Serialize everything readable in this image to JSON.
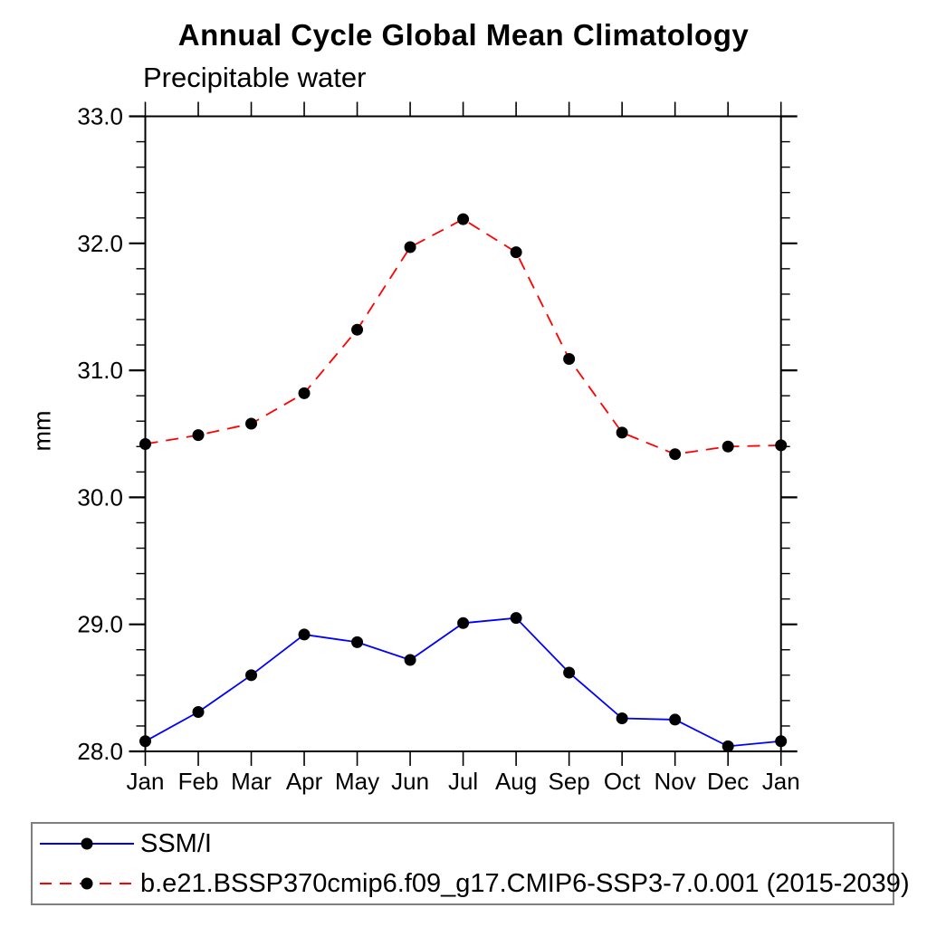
{
  "page": {
    "title": "Annual Cycle Global Mean Climatology",
    "subtitle": "Precipitable water",
    "y_axis_label": "mm"
  },
  "chart_data": {
    "type": "line",
    "title": "Annual Cycle Global Mean Climatology",
    "subtitle": "Precipitable water",
    "xlabel": "",
    "ylabel": "mm",
    "x_categories": [
      "Jan",
      "Feb",
      "Mar",
      "Apr",
      "May",
      "Jun",
      "Jul",
      "Aug",
      "Sep",
      "Oct",
      "Nov",
      "Dec",
      "Jan"
    ],
    "ylim": [
      28.0,
      33.0
    ],
    "ytick_values": [
      28.0,
      29.0,
      30.0,
      31.0,
      32.0,
      33.0
    ],
    "ytick_labels": [
      "28.0",
      "29.0",
      "30.0",
      "31.0",
      "32.0",
      "33.0"
    ],
    "minor_tick_step": 0.2,
    "grid": false,
    "legend_position": "bottom",
    "axis_color": "#000000",
    "legend_border_color": "#7f7f7f",
    "marker": "filled-circle",
    "marker_color": "#000000",
    "series": [
      {
        "name": "SSM/I",
        "color": "#0000ff",
        "line_style": "solid",
        "values": [
          28.08,
          28.31,
          28.6,
          28.92,
          28.86,
          28.72,
          29.01,
          29.05,
          28.62,
          28.26,
          28.25,
          28.04,
          28.08
        ]
      },
      {
        "name": "b.e21.BSSP370cmip6.f09_g17.CMIP6-SSP3-7.0.001 (2015-2039)",
        "color": "#ff0000",
        "line_style": "dashed",
        "values": [
          30.42,
          30.49,
          30.58,
          30.82,
          31.32,
          31.97,
          32.19,
          31.93,
          31.09,
          30.51,
          30.34,
          30.4,
          30.41
        ]
      }
    ]
  }
}
